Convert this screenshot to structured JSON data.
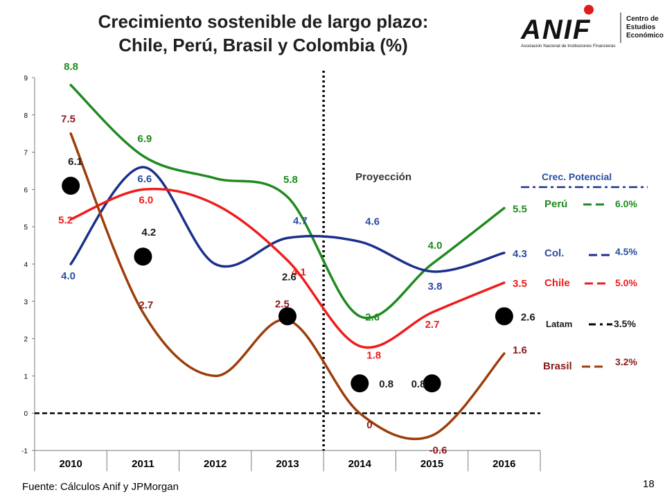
{
  "page": {
    "title_line1": "Crecimiento sostenible de largo plazo:",
    "title_line2": "Chile, Perú, Brasil y Colombia (%)",
    "source": "Fuente: Cálculos Anif y  JPMorgan",
    "page_number": "18",
    "logo_text": "ANIF",
    "logo_tagline": "Asociación Nacional de Instituciones Financieras",
    "logo_side_line1": "Centro de",
    "logo_side_line2": "Estudios",
    "logo_side_line3": "Económicos"
  },
  "colors": {
    "peru": "#1e8a1e",
    "colombia": "#1a2f8a",
    "chile": "#ee1c1c",
    "brasil": "#9c3d0a",
    "latam": "#000000",
    "brasil_label": "#8b1a1a",
    "colombia_label": "#2a4da0"
  },
  "chart_data": {
    "type": "line",
    "categories": [
      "2010",
      "2011",
      "2012",
      "2013",
      "2014",
      "2015",
      "2016"
    ],
    "ylim": [
      -1,
      9
    ],
    "yticks": [
      "9",
      "8",
      "7",
      "6",
      "5",
      "4",
      "3",
      "2",
      "1",
      "0",
      "-1"
    ],
    "grid": false,
    "projection_label": "Proyección",
    "projection_start": 2013.5,
    "series": [
      {
        "name": "Perú",
        "key": "peru",
        "x": [
          2010,
          2011,
          2012,
          2013,
          2014,
          2015,
          2016
        ],
        "values": [
          8.8,
          6.9,
          6.3,
          5.8,
          2.6,
          4.0,
          5.5
        ],
        "labels": [
          "8.8",
          "6.9",
          "",
          "5.8",
          "2.6",
          "4.0",
          "5.5"
        ]
      },
      {
        "name": "Col.",
        "key": "colombia",
        "x": [
          2010,
          2011,
          2012,
          2013,
          2014,
          2015,
          2016
        ],
        "values": [
          4.0,
          6.6,
          4.0,
          4.7,
          4.6,
          3.8,
          4.3
        ],
        "labels": [
          "4.0",
          "6.6",
          "",
          "4.7",
          "4.6",
          "3.8",
          "4.3"
        ]
      },
      {
        "name": "Chile",
        "key": "chile",
        "x": [
          2010,
          2011,
          2012,
          2013,
          2014,
          2015,
          2016
        ],
        "values": [
          5.2,
          6.0,
          5.6,
          4.1,
          1.8,
          2.7,
          3.5
        ],
        "labels": [
          "5.2",
          "6.0",
          "",
          "4.1",
          "1.8",
          "2.7",
          "3.5"
        ]
      },
      {
        "name": "Brasil",
        "key": "brasil",
        "x": [
          2010,
          2011,
          2012,
          2013,
          2014,
          2015,
          2016
        ],
        "values": [
          7.5,
          2.7,
          1.0,
          2.5,
          0.0,
          -0.6,
          1.6
        ],
        "labels": [
          "7.5",
          "2.7",
          "",
          "2.5",
          "0",
          "-0.6",
          "1.6"
        ]
      },
      {
        "name": "Latam",
        "key": "latam",
        "x": [
          2010,
          2011,
          2013,
          2014,
          2015,
          2016
        ],
        "values": [
          6.1,
          4.2,
          2.6,
          0.8,
          0.8,
          2.6
        ],
        "labels": [
          "6.1",
          "4.2",
          "2.6",
          "0.8",
          "0.8",
          "2.6"
        ]
      }
    ],
    "legend": {
      "title": "Crec. Potencial",
      "placement": "right",
      "items": [
        {
          "name": "Perú",
          "key": "peru",
          "value": "6.0%"
        },
        {
          "name": "Col.",
          "key": "colombia",
          "value": "4.5%"
        },
        {
          "name": "Chile",
          "key": "chile",
          "value": "5.0%"
        },
        {
          "name": "Latam",
          "key": "latam",
          "value": "3.5%"
        },
        {
          "name": "Brasil",
          "key": "brasil",
          "value": "3.2%"
        }
      ]
    }
  }
}
